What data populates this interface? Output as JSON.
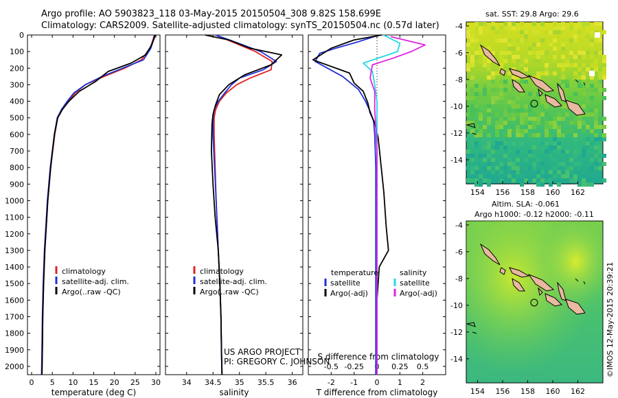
{
  "header": {
    "title_line1": "Argo profile: AO 5903823_118 03-May-2015 20150504_308 9.82S 158.699E",
    "title_line2": "Climatology: CARS2009. Satellite-adjusted climatology: synTS_20150504.nc (0.57d later)"
  },
  "colors": {
    "climatology": "#e02020",
    "satellite": "#1f2fd8",
    "argo": "#000000",
    "sat_salinity": "#22d8e8",
    "argo_salinity": "#e020e0"
  },
  "chart_data": [
    {
      "type": "line",
      "xlabel": "temperature (deg C)",
      "xlim": [
        -1,
        31
      ],
      "xticks": [
        "0",
        "5",
        "10",
        "15",
        "20",
        "25",
        "30"
      ],
      "ylim": [
        0,
        2050
      ],
      "yticks": [
        "0",
        "100",
        "200",
        "300",
        "400",
        "500",
        "600",
        "700",
        "800",
        "900",
        "1000",
        "1100",
        "1200",
        "1300",
        "1400",
        "1500",
        "1600",
        "1700",
        "1800",
        "1900",
        "2000"
      ],
      "legend": [
        "climatology",
        "satellite-adj. clim.",
        "Argo(..raw -QC)"
      ],
      "series": [
        {
          "key": "climatology",
          "color": "#e02020",
          "x": [
            29.6,
            29.3,
            28.6,
            26.5,
            22.5,
            17.5,
            13.0,
            10.5,
            8.8,
            7.4,
            6.3,
            5.6,
            4.6,
            3.9,
            3.2,
            2.9,
            2.7,
            2.6,
            2.5
          ],
          "y": [
            0,
            30,
            80,
            150,
            200,
            250,
            300,
            350,
            400,
            450,
            500,
            600,
            800,
            1000,
            1300,
            1500,
            1700,
            1900,
            2050
          ]
        },
        {
          "key": "satellite",
          "color": "#1f2fd8",
          "x": [
            29.7,
            29.4,
            28.8,
            27.0,
            22.0,
            17.0,
            13.0,
            10.2,
            8.6,
            7.2,
            6.2,
            5.5,
            4.5,
            3.8,
            3.1,
            2.8,
            2.6,
            2.5,
            2.4
          ],
          "y": [
            0,
            30,
            80,
            150,
            200,
            250,
            300,
            350,
            400,
            450,
            500,
            600,
            800,
            1000,
            1300,
            1500,
            1700,
            1900,
            2050
          ]
        },
        {
          "key": "argo",
          "color": "#000000",
          "x": [
            29.8,
            29.6,
            29.0,
            27.5,
            24.0,
            18.5,
            15.5,
            11.5,
            9.0,
            7.4,
            6.3,
            5.5,
            4.6,
            3.9,
            3.2,
            2.9,
            2.7,
            2.6,
            2.5
          ],
          "y": [
            0,
            20,
            60,
            120,
            170,
            220,
            280,
            340,
            400,
            450,
            500,
            600,
            800,
            1000,
            1300,
            1500,
            1700,
            1900,
            2050
          ]
        }
      ]
    },
    {
      "type": "line",
      "xlabel": "salinity",
      "xlim": [
        33.6,
        36.2
      ],
      "xticks": [
        "34",
        "34.5",
        "35",
        "35.5",
        "36"
      ],
      "ylim": [
        0,
        2050
      ],
      "legend": [
        "climatology",
        "satellite-adj. clim.",
        "Argo(..raw -QC)"
      ],
      "footer": [
        "US ARGO PROJECT",
        "PI: GREGORY C. JOHNSON"
      ],
      "series": [
        {
          "key": "climatology",
          "color": "#e02020",
          "x": [
            34.55,
            34.85,
            35.3,
            35.62,
            35.6,
            35.2,
            34.95,
            34.75,
            34.62,
            34.55,
            34.52,
            34.52,
            34.54,
            34.56,
            34.6,
            34.63,
            34.65,
            34.66,
            34.67
          ],
          "y": [
            0,
            40,
            100,
            160,
            210,
            260,
            300,
            350,
            400,
            450,
            500,
            600,
            800,
            1000,
            1300,
            1500,
            1700,
            1900,
            2050
          ]
        },
        {
          "key": "satellite",
          "color": "#1f2fd8",
          "x": [
            34.55,
            34.9,
            35.4,
            35.7,
            35.45,
            35.0,
            34.85,
            34.72,
            34.6,
            34.52,
            34.5,
            34.5,
            34.53,
            34.56,
            34.6,
            34.63,
            34.65,
            34.66,
            34.67
          ],
          "y": [
            0,
            40,
            100,
            160,
            210,
            260,
            300,
            350,
            400,
            450,
            500,
            600,
            800,
            1000,
            1300,
            1500,
            1700,
            1900,
            2050
          ]
        },
        {
          "key": "argo",
          "color": "#000000",
          "x": [
            34.35,
            34.8,
            35.2,
            35.8,
            35.6,
            35.1,
            34.8,
            34.62,
            34.55,
            34.5,
            34.48,
            34.47,
            34.5,
            34.54,
            34.6,
            34.63,
            34.65,
            34.66,
            34.67
          ],
          "y": [
            0,
            30,
            80,
            120,
            180,
            240,
            300,
            360,
            420,
            480,
            540,
            700,
            900,
            1100,
            1300,
            1500,
            1700,
            1900,
            2050
          ]
        }
      ]
    },
    {
      "type": "line",
      "xlabel": "T difference from climatology",
      "xlim": [
        -3,
        3
      ],
      "xticks": [
        "-2",
        "-1",
        "0",
        "1",
        "2"
      ],
      "xlabel_top": "S difference from climatology",
      "xticks_top": [
        "-0.5",
        "-0.25",
        "0",
        "0.25",
        "0.5"
      ],
      "ylim": [
        0,
        2050
      ],
      "legend_left_title": "temperature",
      "legend_right_title": "salinity",
      "legend_left": [
        "satellite",
        "Argo(-adj)"
      ],
      "legend_right": [
        "satellite",
        "Argo(-adj)"
      ],
      "series": [
        {
          "key": "T satellite",
          "color": "#1f2fd8",
          "x": [
            0.1,
            -0.8,
            -1.8,
            -2.5,
            -2.7,
            -1.5,
            -0.8,
            -0.5,
            -0.3,
            -0.15,
            -0.1,
            -0.05,
            -0.05,
            -0.05,
            -0.05,
            -0.05,
            -0.05,
            -0.05,
            -0.05
          ],
          "y": [
            0,
            40,
            80,
            110,
            160,
            250,
            330,
            400,
            460,
            520,
            600,
            800,
            1000,
            1200,
            1400,
            1600,
            1800,
            1950,
            2050
          ]
        },
        {
          "key": "T argo",
          "color": "#000000",
          "x": [
            0.2,
            -1.0,
            -2.0,
            -2.8,
            -1.2,
            -1.0,
            -0.6,
            -0.4,
            -0.3,
            -0.1,
            0.05,
            0.3,
            0.4,
            0.5,
            0.1,
            0.0,
            0.0,
            0.0,
            0.0
          ],
          "y": [
            0,
            30,
            80,
            150,
            230,
            290,
            340,
            410,
            470,
            530,
            620,
            950,
            1150,
            1300,
            1400,
            1600,
            1800,
            1950,
            2050
          ]
        },
        {
          "key": "S satellite",
          "color": "#22d8e8",
          "x": [
            0.28,
            1.0,
            0.9,
            -0.6,
            -0.2,
            -0.1,
            0.0,
            0.0,
            0.0,
            0.0,
            0.0,
            0.0,
            0.0,
            0.0
          ],
          "y": [
            0,
            50,
            100,
            170,
            220,
            300,
            400,
            500,
            600,
            800,
            1000,
            1300,
            1600,
            2050
          ]
        },
        {
          "key": "S argo",
          "color": "#e020e0",
          "x": [
            0.6,
            2.1,
            1.5,
            0.7,
            -0.2,
            -0.3,
            -0.1,
            -0.1,
            -0.05,
            0.0,
            0.0,
            0.0,
            0.0
          ],
          "y": [
            10,
            60,
            100,
            140,
            180,
            260,
            340,
            450,
            560,
            700,
            900,
            1200,
            2050
          ]
        }
      ]
    }
  ],
  "maps": {
    "top_title": "sat. SST: 29.8 Argo: 29.6",
    "bottom_title1": "Altim. SLA: -0.061",
    "bottom_title2": "Argo h1000: -0.12 h2000: -0.11",
    "yticks": [
      "-4",
      "-6",
      "-8",
      "-10",
      "-12",
      "-14"
    ],
    "xticks": [
      "154",
      "156",
      "158",
      "160",
      "162"
    ],
    "argo_lon": 158.7,
    "argo_lat": -9.82
  },
  "watermark": "©IMOS 12-May-2015 20:39:21"
}
